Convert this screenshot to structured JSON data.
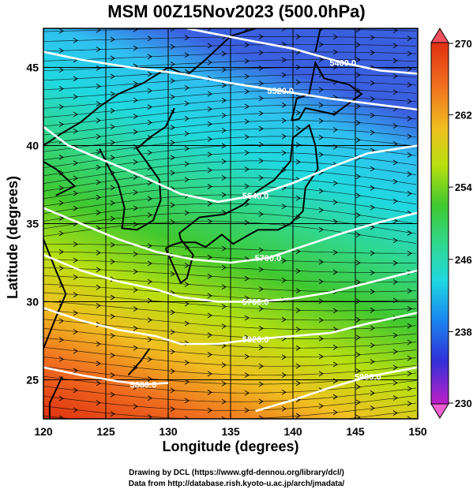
{
  "title": "MSM 00Z15Nov2023 (500.0hPa)",
  "xlabel": "Longitude (degrees)",
  "ylabel": "Latitude  (degrees)",
  "credits": [
    "Drawing by DCL (https://www.gfd-dennou.org/library/dcl/)",
    "Data from http://database.rish.kyoto-u.ac.jp/arch/jmadata/"
  ],
  "map": {
    "lon_range": [
      120,
      150
    ],
    "lat_range": [
      22.5,
      47.5
    ],
    "lon_ticks": [
      120,
      125,
      130,
      135,
      140,
      145,
      150
    ],
    "lat_ticks": [
      25,
      30,
      35,
      40,
      45
    ],
    "lon_tick_labels": [
      "120",
      "125",
      "130",
      "135",
      "140",
      "145",
      "150"
    ],
    "lat_tick_labels": [
      "25",
      "30",
      "35",
      "40",
      "45"
    ],
    "field": "temperature",
    "wind_direction": "westerly (streamlines)",
    "grid": true
  },
  "colorbar": {
    "min": 230,
    "max": 270,
    "tick_labels": [
      "270",
      "262",
      "254",
      "246",
      "238",
      "230"
    ],
    "tick_values": [
      270,
      262,
      254,
      246,
      238,
      230
    ],
    "colors": [
      "#d020d0",
      "#3030d8",
      "#1a8cf0",
      "#20d8e0",
      "#30d890",
      "#40c830",
      "#b8e010",
      "#f0d020",
      "#f08020",
      "#e03010"
    ],
    "extend": "both"
  },
  "contours": [
    {
      "label": "5400.0",
      "points": [
        [
          131.5,
          47.5
        ],
        [
          136,
          46.8
        ],
        [
          140,
          46.2
        ],
        [
          144,
          45.3
        ],
        [
          147,
          44.8
        ],
        [
          150,
          44.6
        ]
      ]
    },
    {
      "label": "5520.0",
      "points": [
        [
          120,
          46.0
        ],
        [
          123,
          45.5
        ],
        [
          127,
          45.0
        ],
        [
          131,
          44.6
        ],
        [
          135,
          44.0
        ],
        [
          139,
          43.5
        ],
        [
          143,
          43.0
        ],
        [
          147,
          42.6
        ],
        [
          150,
          42.3
        ]
      ]
    },
    {
      "label": "5640.0",
      "points": [
        [
          120,
          41.2
        ],
        [
          122,
          40.0
        ],
        [
          125,
          39.0
        ],
        [
          128,
          38.0
        ],
        [
          131,
          36.9
        ],
        [
          134,
          36.4
        ],
        [
          137,
          36.8
        ],
        [
          140,
          37.6
        ],
        [
          143,
          38.6
        ],
        [
          146,
          39.5
        ],
        [
          150,
          40.0
        ]
      ]
    },
    {
      "label": "5700.0",
      "points": [
        [
          120,
          36.0
        ],
        [
          123,
          35.0
        ],
        [
          126,
          34.0
        ],
        [
          129,
          33.2
        ],
        [
          132,
          32.7
        ],
        [
          135,
          32.5
        ],
        [
          138,
          32.8
        ],
        [
          141,
          33.6
        ],
        [
          144,
          34.4
        ],
        [
          147,
          35.1
        ],
        [
          150,
          35.7
        ]
      ]
    },
    {
      "label": "5760.0",
      "points": [
        [
          120,
          33.0
        ],
        [
          123,
          32.0
        ],
        [
          126,
          31.3
        ],
        [
          129,
          30.8
        ],
        [
          131,
          30.3
        ],
        [
          134,
          30.0
        ],
        [
          137,
          30.0
        ],
        [
          140,
          30.2
        ],
        [
          143,
          30.6
        ],
        [
          146,
          31.2
        ],
        [
          150,
          32.0
        ]
      ]
    },
    {
      "label": "5820.0",
      "points": [
        [
          120,
          29.6
        ],
        [
          123,
          28.8
        ],
        [
          126,
          28.2
        ],
        [
          129,
          27.8
        ],
        [
          131,
          27.3
        ],
        [
          134,
          27.3
        ],
        [
          137,
          27.6
        ],
        [
          140,
          27.8
        ],
        [
          143,
          28.0
        ],
        [
          146,
          28.6
        ],
        [
          150,
          29.3
        ]
      ]
    },
    {
      "label": "5880.0",
      "points": [
        [
          120,
          25.8
        ],
        [
          123,
          25.3
        ],
        [
          126,
          24.9
        ],
        [
          128,
          24.7
        ],
        [
          130,
          24.8
        ]
      ]
    },
    {
      "label": "5900.0",
      "points": [
        [
          137,
          23.0
        ],
        [
          140,
          23.7
        ],
        [
          143,
          24.5
        ],
        [
          146,
          25.2
        ],
        [
          150,
          25.8
        ]
      ]
    }
  ]
}
